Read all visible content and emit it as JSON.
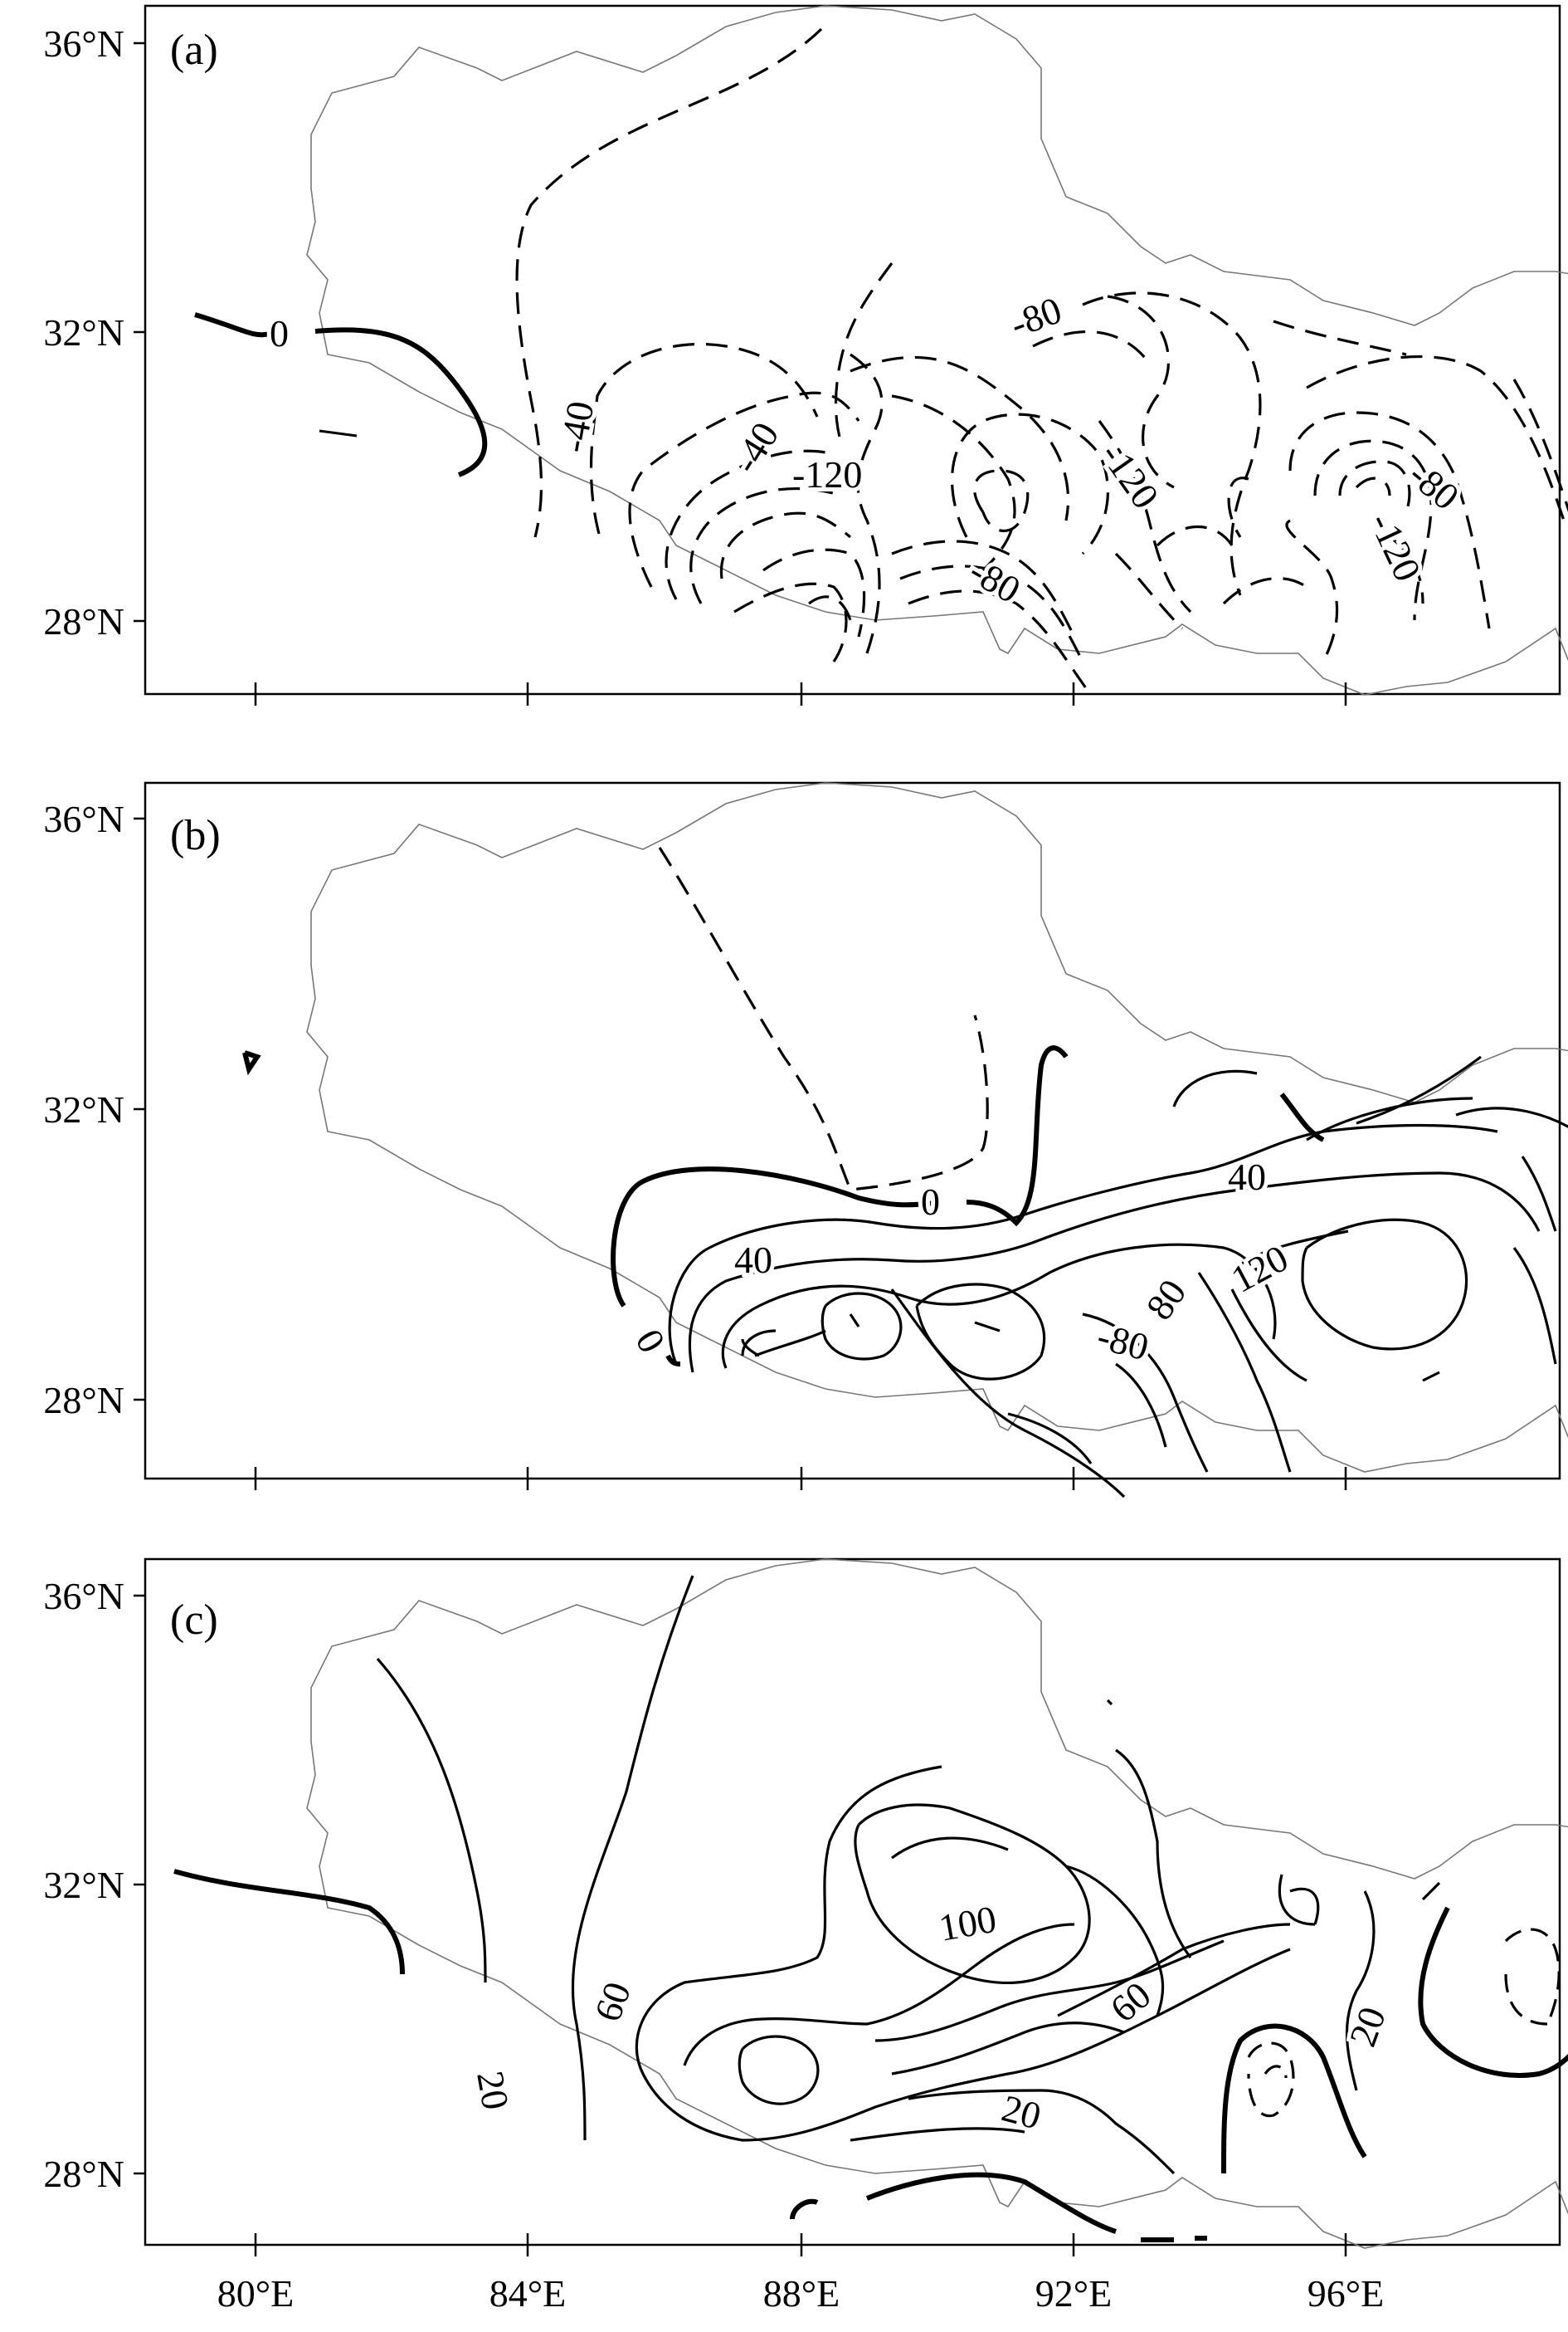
{
  "figure": {
    "panels": [
      {
        "label": "(a)",
        "contour_labels": [
          "0",
          "-40",
          "-40",
          "-80",
          "-120",
          "-120",
          "-80",
          "-80",
          "-120"
        ]
      },
      {
        "label": "(b)",
        "contour_labels": [
          "0",
          "0",
          "40",
          "40",
          "-80",
          "80",
          "120"
        ]
      },
      {
        "label": "(c)",
        "contour_labels": [
          "20",
          "60",
          "100",
          "60",
          "20",
          "20"
        ]
      }
    ],
    "y_ticks": [
      "36°N",
      "32°N",
      "28°N"
    ],
    "x_ticks": [
      "80°E",
      "84°E",
      "88°E",
      "92°E",
      "96°E"
    ],
    "colors": {
      "frame": "#000000",
      "border": "#777777",
      "contour": "#000000"
    }
  }
}
